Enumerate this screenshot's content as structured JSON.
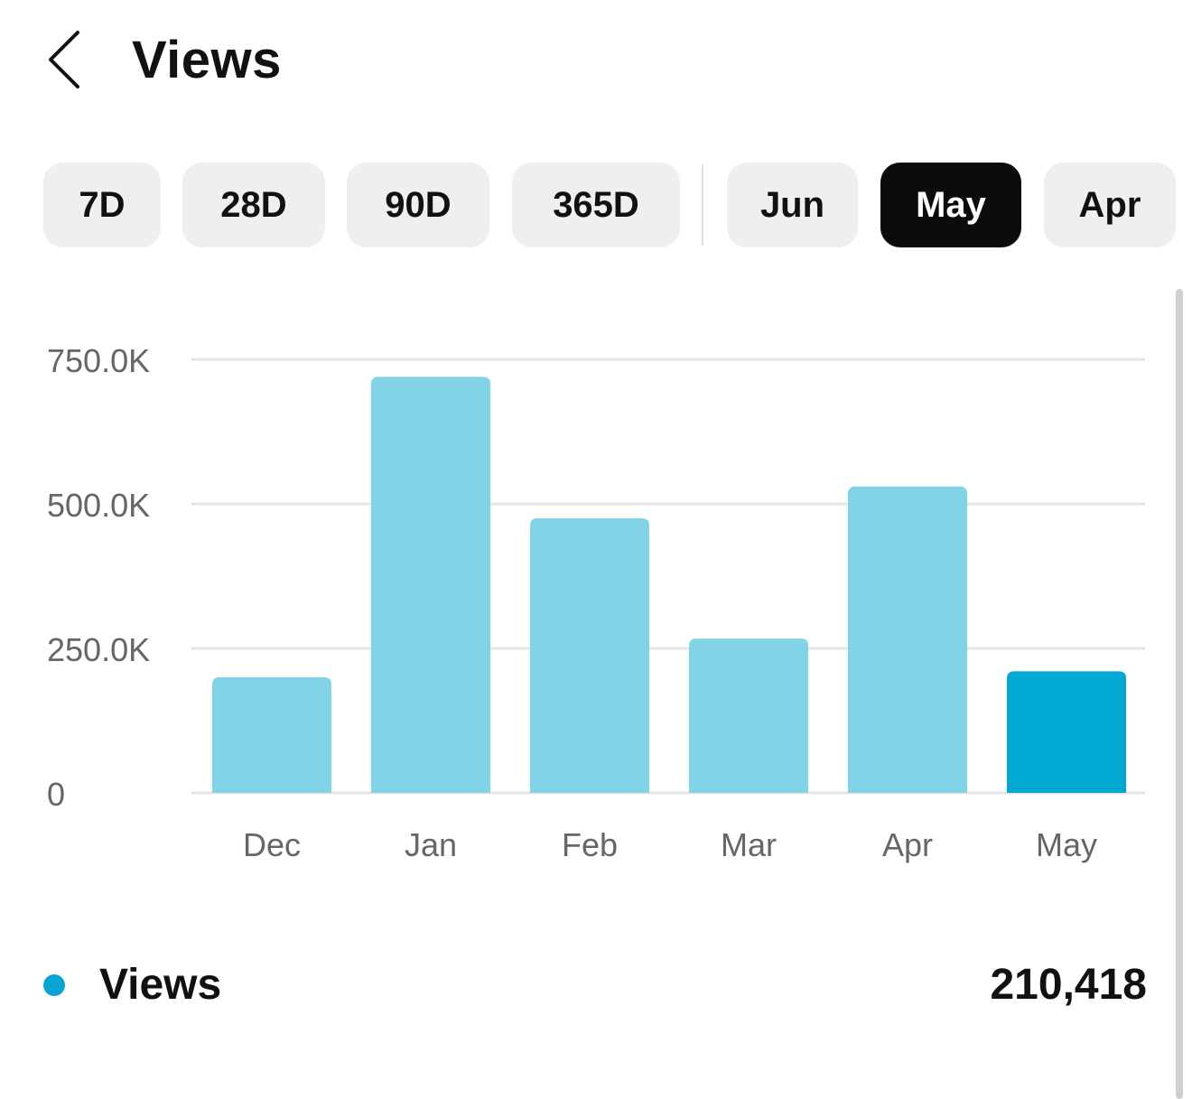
{
  "header": {
    "title": "Views",
    "back_icon": "chevron-left-icon"
  },
  "filters": {
    "range_chips": [
      "7D",
      "28D",
      "90D",
      "365D"
    ],
    "month_chips": [
      "Jun",
      "May",
      "Apr"
    ],
    "active": "May"
  },
  "chart_data": {
    "type": "bar",
    "categories": [
      "Dec",
      "Jan",
      "Feb",
      "Mar",
      "Apr",
      "May"
    ],
    "series": [
      {
        "name": "Views",
        "values": [
          200000,
          720000,
          475000,
          267000,
          530000,
          210418
        ]
      }
    ],
    "ylim": [
      0,
      750000
    ],
    "yticks": [
      {
        "value": 0,
        "label": "0"
      },
      {
        "value": 250000,
        "label": "250.0K"
      },
      {
        "value": 500000,
        "label": "500.0K"
      },
      {
        "value": 750000,
        "label": "750.0K"
      }
    ],
    "highlight_category": "May",
    "colors": {
      "bar": "#82d3e7",
      "bar_highlight": "#01a8d1",
      "grid": "#e4e4e4",
      "tick_label": "#666666"
    },
    "grid": true
  },
  "legend": {
    "label": "Views",
    "value": "210,418",
    "dot_color": "#0aa3d4"
  }
}
